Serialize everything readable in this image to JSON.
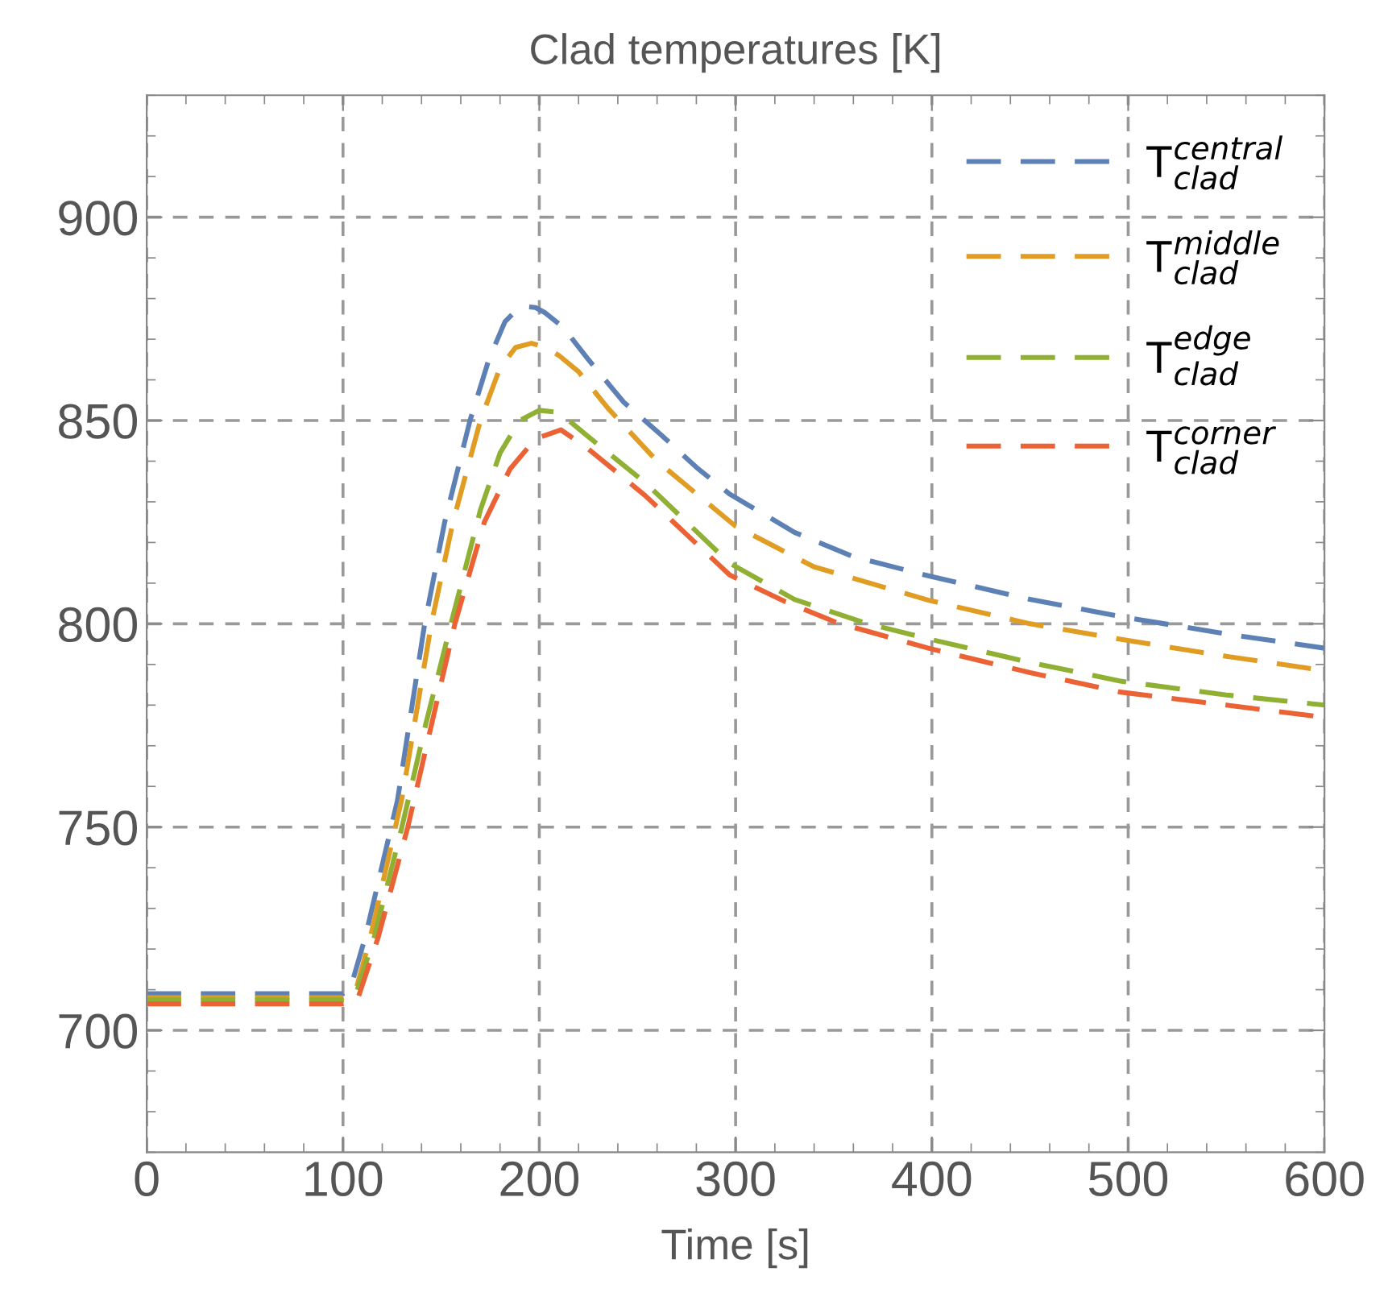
{
  "chart_data": {
    "type": "line",
    "title": "Clad temperatures [K]",
    "xlabel": "Time [s]",
    "xlim": [
      0,
      600
    ],
    "ylim": [
      670,
      930
    ],
    "xticks": [
      0,
      100,
      200,
      300,
      400,
      500,
      600
    ],
    "yticks": [
      700,
      750,
      800,
      850,
      900
    ],
    "grid": true,
    "legend": "top right",
    "line_style": "dashed",
    "marker": "none",
    "series": [
      {
        "name": "T$^{central}$$_{clad}$",
        "color": "#5e81b5",
        "x": [
          0,
          100,
          104,
          111.4,
          127.8,
          141.6,
          151.8,
          164.7,
          174.3,
          182.5,
          188,
          193,
          198,
          203,
          212,
          225,
          243,
          262,
          280,
          297,
          330,
          360,
          399,
          450,
          496,
          550,
          600
        ],
        "values": [
          709,
          709,
          710.7,
          723,
          756.7,
          800,
          825,
          850,
          865,
          874.3,
          877,
          878,
          877.8,
          876.5,
          873,
          865,
          854.5,
          846.5,
          838.5,
          831.9,
          822.5,
          816.5,
          811.7,
          806,
          801.8,
          797.5,
          794
        ]
      },
      {
        "name": "T$^{middle}$$_{clad}$",
        "color": "#e19c24",
        "x": [
          0,
          100,
          106,
          114,
          130,
          145,
          156,
          170,
          180,
          188,
          196,
          203,
          210,
          220,
          235,
          260,
          300,
          340,
          399,
          450,
          496,
          550,
          600
        ],
        "values": [
          708,
          708,
          709,
          723,
          757,
          800,
          825,
          850,
          863,
          868,
          869,
          868,
          866,
          862,
          853,
          840,
          824,
          814,
          805.7,
          800,
          796.2,
          792,
          788.5
        ]
      },
      {
        "name": "T$^{edge}$$_{clad}$",
        "color": "#8fb032",
        "x": [
          0,
          100,
          106,
          116,
          130,
          142,
          155,
          170,
          180,
          190,
          200,
          210,
          225,
          254,
          297,
          330,
          366,
          399,
          450,
          496,
          550,
          600
        ],
        "values": [
          707.5,
          707.5,
          708,
          723,
          750,
          775,
          800,
          828,
          842,
          850,
          852.5,
          852,
          846,
          834.7,
          814.9,
          806,
          800.2,
          796.2,
          790.5,
          785.9,
          782.5,
          780
        ]
      },
      {
        "name": "T$^{corner}$$_{clad}$",
        "color": "#eb6235",
        "x": [
          0,
          100,
          107,
          118,
          133,
          145,
          157,
          172,
          185,
          198,
          211,
          225,
          254,
          297,
          325,
          352,
          399,
          450,
          496,
          550,
          600
        ],
        "values": [
          706.5,
          706.5,
          707,
          723,
          750,
          775,
          800,
          825,
          838,
          845.5,
          847.7,
          843,
          831.5,
          812,
          805.5,
          800.2,
          793.9,
          788,
          783.2,
          780,
          777
        ]
      }
    ]
  }
}
